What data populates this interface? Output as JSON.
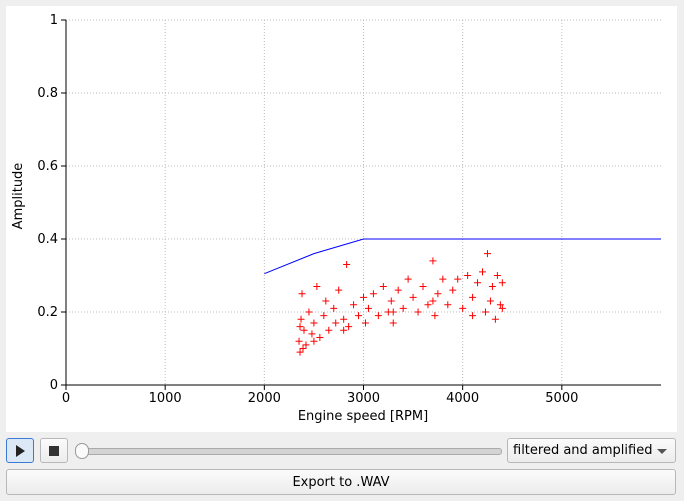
{
  "chart_data": {
    "type": "scatter",
    "xlabel": "Engine speed [RPM]",
    "ylabel": "Amplitude",
    "xlim": [
      0,
      6000
    ],
    "ylim": [
      0,
      1
    ],
    "xticks": [
      0,
      1000,
      2000,
      3000,
      4000,
      5000
    ],
    "yticks": [
      0,
      0.2,
      0.4,
      0.6,
      0.8,
      1
    ],
    "grid": true,
    "series": [
      {
        "type": "line",
        "color": "#0000ff",
        "x": [
          2000,
          2500,
          3000,
          6000
        ],
        "values": [
          0.305,
          0.36,
          0.4,
          0.4
        ]
      },
      {
        "type": "scatter",
        "color": "#ff0000",
        "marker": "+",
        "x": [
          2350,
          2360,
          2370,
          2380,
          2400,
          2420,
          2450,
          2480,
          2500,
          2530,
          2560,
          2600,
          2620,
          2650,
          2700,
          2720,
          2750,
          2800,
          2830,
          2850,
          2900,
          2950,
          3000,
          3020,
          3050,
          3100,
          3150,
          3200,
          3250,
          3280,
          3300,
          3350,
          3400,
          3450,
          3500,
          3550,
          3600,
          3650,
          3700,
          3720,
          3750,
          3800,
          3850,
          3900,
          3950,
          4000,
          4050,
          4100,
          4150,
          4200,
          4230,
          4250,
          4280,
          4300,
          4330,
          4350,
          4380,
          4400,
          2360,
          2390,
          2500,
          2800,
          3300,
          3700,
          4100,
          4400
        ],
        "values": [
          0.12,
          0.09,
          0.18,
          0.25,
          0.15,
          0.11,
          0.2,
          0.14,
          0.17,
          0.27,
          0.13,
          0.19,
          0.23,
          0.15,
          0.21,
          0.17,
          0.26,
          0.18,
          0.33,
          0.16,
          0.22,
          0.19,
          0.24,
          0.17,
          0.21,
          0.25,
          0.19,
          0.27,
          0.2,
          0.23,
          0.17,
          0.26,
          0.21,
          0.29,
          0.24,
          0.2,
          0.27,
          0.22,
          0.34,
          0.19,
          0.25,
          0.29,
          0.22,
          0.26,
          0.29,
          0.21,
          0.3,
          0.24,
          0.28,
          0.31,
          0.2,
          0.36,
          0.23,
          0.27,
          0.18,
          0.3,
          0.22,
          0.28,
          0.16,
          0.1,
          0.12,
          0.15,
          0.2,
          0.23,
          0.19,
          0.21
        ]
      }
    ]
  },
  "controls": {
    "mode_dropdown": "filtered and amplified",
    "export_button": "Export to .WAV"
  }
}
